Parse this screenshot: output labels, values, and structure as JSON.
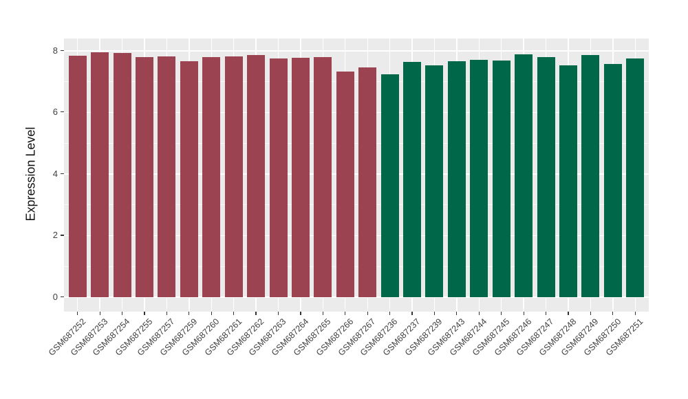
{
  "figure": {
    "background": "#FFFFFF",
    "panel_background": "#EBEBEB",
    "grid_major_color": "#FFFFFF",
    "grid_minor_color": "rgba(255,255,255,0.65)",
    "tick_mark_color": "#333333",
    "axis_text_color": "#404040",
    "axis_title_color": "#111111"
  },
  "chart_data": {
    "type": "bar",
    "title": "",
    "xlabel": "",
    "ylabel": "Expression Level",
    "ylim": [
      -0.45,
      8.4
    ],
    "yticks": [
      0,
      2,
      4,
      6,
      8
    ],
    "minor_gridlines": [
      1,
      3,
      5,
      7
    ],
    "grid": true,
    "legend": false,
    "categories": [
      "GSM687252",
      "GSM687253",
      "GSM687254",
      "GSM687255",
      "GSM687257",
      "GSM687259",
      "GSM687260",
      "GSM687261",
      "GSM687262",
      "GSM687263",
      "GSM687264",
      "GSM687265",
      "GSM687266",
      "GSM687267",
      "GSM687236",
      "GSM687237",
      "GSM687239",
      "GSM687243",
      "GSM687244",
      "GSM687245",
      "GSM687246",
      "GSM687247",
      "GSM687248",
      "GSM687249",
      "GSM687250",
      "GSM687251"
    ],
    "values": [
      7.82,
      7.95,
      7.92,
      7.78,
      7.81,
      7.65,
      7.79,
      7.81,
      7.85,
      7.75,
      7.77,
      7.79,
      7.32,
      7.45,
      7.22,
      7.62,
      7.52,
      7.64,
      7.7,
      7.67,
      7.88,
      7.79,
      7.52,
      7.85,
      7.57,
      7.75
    ],
    "bar_colors": [
      "#9B4350",
      "#9B4350",
      "#9B4350",
      "#9B4350",
      "#9B4350",
      "#9B4350",
      "#9B4350",
      "#9B4350",
      "#9B4350",
      "#9B4350",
      "#9B4350",
      "#9B4350",
      "#9B4350",
      "#9B4350",
      "#006749",
      "#006749",
      "#006749",
      "#006749",
      "#006749",
      "#006749",
      "#006749",
      "#006749",
      "#006749",
      "#006749",
      "#006749",
      "#006749"
    ]
  }
}
